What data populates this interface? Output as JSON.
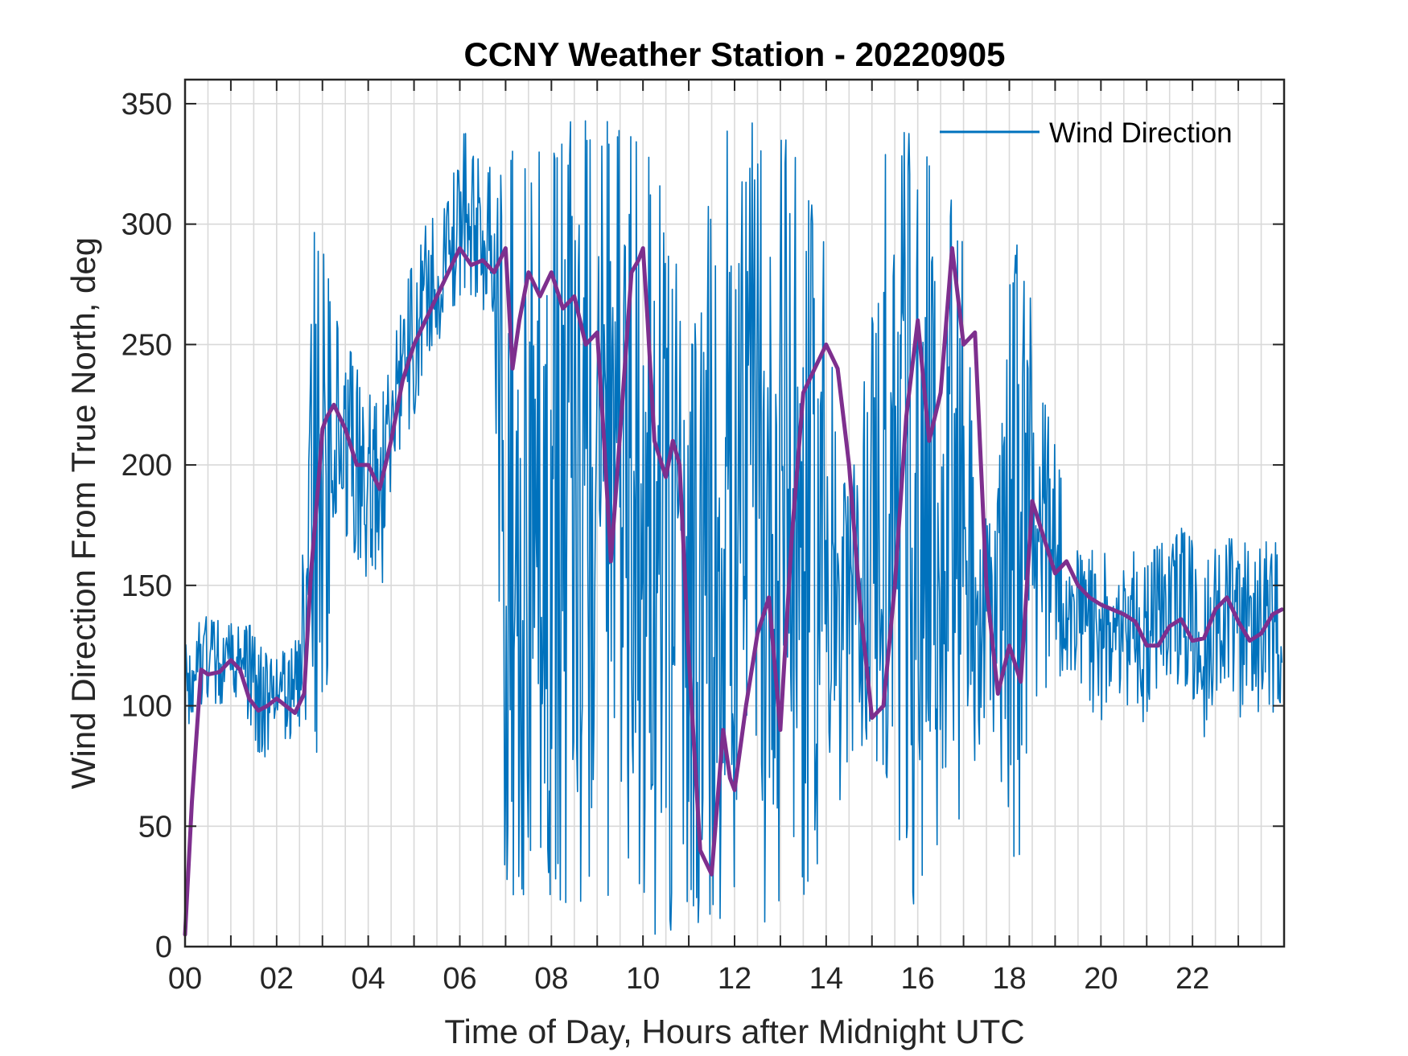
{
  "chart_data": {
    "type": "line",
    "title": "CCNY Weather Station - 20220905",
    "xlabel": "Time of Day, Hours after Midnight UTC",
    "ylabel": "Wind Direction From True North, deg",
    "xlim": [
      0,
      24
    ],
    "ylim": [
      0,
      360
    ],
    "grid": true,
    "legend_position": "top-right",
    "x_tick_values": [
      0,
      2,
      4,
      6,
      8,
      10,
      12,
      14,
      16,
      18,
      20,
      22
    ],
    "x_tick_labels": [
      "00",
      "02",
      "04",
      "06",
      "08",
      "10",
      "12",
      "14",
      "16",
      "18",
      "20",
      "22"
    ],
    "y_tick_values": [
      0,
      50,
      100,
      150,
      200,
      250,
      300,
      350
    ],
    "y_tick_labels": [
      "0",
      "50",
      "100",
      "150",
      "200",
      "250",
      "300",
      "350"
    ],
    "series": [
      {
        "name": "Wind Direction",
        "color": "#0072BD",
        "kind": "raw-envelope",
        "x": [
          0.0,
          0.1,
          0.25,
          0.5,
          0.75,
          1.0,
          1.25,
          1.5,
          1.75,
          2.0,
          2.25,
          2.5,
          2.75,
          3.0,
          3.25,
          3.5,
          3.75,
          4.0,
          4.25,
          4.5,
          4.75,
          5.0,
          5.25,
          5.5,
          5.75,
          6.0,
          6.25,
          6.5,
          6.75,
          7.0,
          7.25,
          7.5,
          7.75,
          8.0,
          8.25,
          8.5,
          8.75,
          9.0,
          9.25,
          9.5,
          9.75,
          10.0,
          10.25,
          10.5,
          10.75,
          11.0,
          11.25,
          11.5,
          11.75,
          12.0,
          12.25,
          12.5,
          12.75,
          13.0,
          13.25,
          13.5,
          13.75,
          14.0,
          14.25,
          14.5,
          14.75,
          15.0,
          15.25,
          15.5,
          15.75,
          16.0,
          16.25,
          16.5,
          16.75,
          17.0,
          17.25,
          17.5,
          17.75,
          18.0,
          18.25,
          18.5,
          18.75,
          19.0,
          19.25,
          19.5,
          19.75,
          20.0,
          20.25,
          20.5,
          20.75,
          21.0,
          21.25,
          21.5,
          21.75,
          22.0,
          22.25,
          22.5,
          22.75,
          23.0,
          23.25,
          23.5,
          23.75,
          23.95
        ],
        "y_low": [
          75,
          95,
          100,
          95,
          100,
          95,
          100,
          85,
          70,
          90,
          85,
          90,
          95,
          55,
          180,
          170,
          160,
          150,
          140,
          180,
          200,
          220,
          240,
          250,
          260,
          270,
          270,
          265,
          250,
          5,
          10,
          30,
          20,
          20,
          10,
          15,
          10,
          5,
          5,
          30,
          15,
          5,
          5,
          5,
          5,
          5,
          5,
          5,
          5,
          5,
          5,
          5,
          5,
          20,
          30,
          20,
          30,
          40,
          50,
          80,
          80,
          85,
          60,
          30,
          30,
          10,
          20,
          30,
          25,
          60,
          70,
          85,
          90,
          10,
          40,
          100,
          100,
          110,
          110,
          110,
          100,
          90,
          110,
          100,
          100,
          85,
          100,
          105,
          110,
          100,
          85,
          105,
          110,
          95,
          95,
          95,
          95,
          100
        ],
        "y_high": [
          150,
          125,
          135,
          140,
          135,
          135,
          145,
          130,
          125,
          120,
          125,
          130,
          310,
          300,
          265,
          255,
          240,
          230,
          225,
          245,
          270,
          290,
          300,
          305,
          310,
          335,
          345,
          320,
          330,
          340,
          345,
          330,
          330,
          340,
          345,
          350,
          345,
          340,
          345,
          340,
          350,
          340,
          330,
          300,
          285,
          250,
          275,
          330,
          345,
          330,
          340,
          345,
          340,
          340,
          345,
          330,
          320,
          300,
          200,
          190,
          220,
          300,
          330,
          340,
          345,
          320,
          330,
          310,
          310,
          300,
          200,
          180,
          190,
          280,
          300,
          265,
          230,
          210,
          185,
          175,
          165,
          165,
          160,
          165,
          165,
          160,
          170,
          165,
          175,
          170,
          165,
          165,
          170,
          170,
          175,
          170,
          175,
          160
        ]
      },
      {
        "color": "#7E2F8E",
        "kind": "smoothed",
        "x": [
          0.0,
          0.15,
          0.35,
          0.5,
          0.75,
          1.0,
          1.2,
          1.4,
          1.6,
          1.8,
          2.0,
          2.2,
          2.4,
          2.6,
          2.75,
          2.9,
          3.0,
          3.1,
          3.25,
          3.5,
          3.75,
          4.0,
          4.25,
          4.5,
          4.75,
          5.0,
          5.25,
          5.5,
          5.75,
          6.0,
          6.25,
          6.5,
          6.75,
          7.0,
          7.15,
          7.3,
          7.5,
          7.75,
          8.0,
          8.25,
          8.5,
          8.75,
          9.0,
          9.15,
          9.3,
          9.45,
          9.6,
          9.75,
          9.9,
          10.0,
          10.1,
          10.25,
          10.5,
          10.65,
          10.8,
          11.0,
          11.25,
          11.5,
          11.75,
          11.9,
          12.0,
          12.25,
          12.5,
          12.75,
          13.0,
          13.25,
          13.5,
          13.75,
          14.0,
          14.25,
          14.5,
          14.75,
          15.0,
          15.25,
          15.5,
          15.75,
          16.0,
          16.25,
          16.5,
          16.75,
          17.0,
          17.25,
          17.5,
          17.75,
          18.0,
          18.25,
          18.5,
          18.75,
          19.0,
          19.25,
          19.5,
          19.75,
          20.0,
          20.25,
          20.5,
          20.75,
          21.0,
          21.25,
          21.5,
          21.75,
          22.0,
          22.25,
          22.5,
          22.75,
          23.0,
          23.25,
          23.5,
          23.75,
          23.95
        ],
        "y": [
          5,
          60,
          115,
          113,
          114,
          119,
          115,
          103,
          98,
          100,
          103,
          100,
          97,
          105,
          155,
          190,
          215,
          220,
          225,
          215,
          200,
          200,
          190,
          210,
          235,
          250,
          260,
          270,
          280,
          290,
          283,
          285,
          280,
          290,
          240,
          260,
          280,
          270,
          280,
          265,
          270,
          250,
          255,
          210,
          160,
          200,
          240,
          280,
          285,
          290,
          260,
          210,
          195,
          210,
          200,
          120,
          40,
          30,
          90,
          70,
          65,
          100,
          130,
          145,
          90,
          170,
          230,
          240,
          250,
          240,
          200,
          140,
          95,
          100,
          150,
          220,
          260,
          210,
          230,
          290,
          250,
          255,
          150,
          105,
          125,
          110,
          185,
          170,
          155,
          160,
          150,
          145,
          142,
          140,
          138,
          135,
          125,
          125,
          133,
          136,
          127,
          128,
          140,
          145,
          135,
          127,
          130,
          138,
          140
        ]
      }
    ]
  }
}
